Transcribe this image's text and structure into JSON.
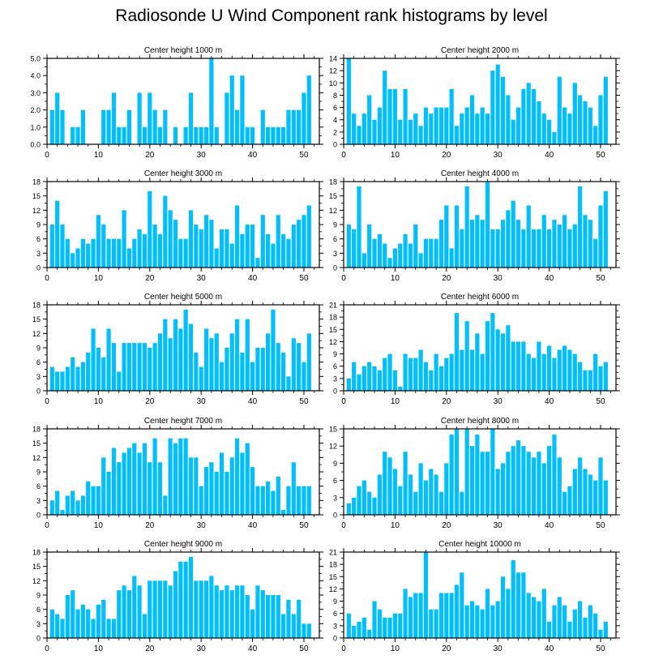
{
  "figure": {
    "title": "Radiosonde U Wind Component rank histograms by level"
  },
  "chart_data": [
    {
      "type": "bar",
      "title": "Center height 1000 m",
      "x": [
        1,
        2,
        3,
        4,
        5,
        6,
        7,
        8,
        9,
        10,
        11,
        12,
        13,
        14,
        15,
        16,
        17,
        18,
        19,
        20,
        21,
        22,
        23,
        24,
        25,
        26,
        27,
        28,
        29,
        30,
        31,
        32,
        33,
        34,
        35,
        36,
        37,
        38,
        39,
        40,
        41,
        42,
        43,
        44,
        45,
        46,
        47,
        48,
        49,
        50,
        51
      ],
      "values": [
        2,
        3,
        2,
        0,
        1,
        1,
        2,
        0,
        0,
        0,
        2,
        2,
        3,
        1,
        1,
        2,
        0,
        3,
        1,
        3,
        2,
        1,
        2,
        0,
        1,
        0,
        1,
        3,
        1,
        1,
        1,
        5,
        1,
        0,
        3,
        4,
        2,
        4,
        1,
        1,
        0,
        2,
        1,
        1,
        1,
        1,
        2,
        2,
        2,
        3,
        4
      ],
      "xlim": [
        0,
        53
      ],
      "ylim": [
        0,
        5
      ],
      "xticks": [
        0,
        10,
        20,
        30,
        40,
        50
      ],
      "yticks": [
        0,
        1,
        2,
        3,
        4,
        5
      ],
      "ytick_labels": [
        "0.0",
        "1.0",
        "2.0",
        "3.0",
        "4.0",
        "5.0"
      ]
    },
    {
      "type": "bar",
      "title": "Center height 2000 m",
      "x": [
        1,
        2,
        3,
        4,
        5,
        6,
        7,
        8,
        9,
        10,
        11,
        12,
        13,
        14,
        15,
        16,
        17,
        18,
        19,
        20,
        21,
        22,
        23,
        24,
        25,
        26,
        27,
        28,
        29,
        30,
        31,
        32,
        33,
        34,
        35,
        36,
        37,
        38,
        39,
        40,
        41,
        42,
        43,
        44,
        45,
        46,
        47,
        48,
        49,
        50,
        51
      ],
      "values": [
        14,
        5,
        3,
        5,
        8,
        4,
        6,
        12,
        9,
        9,
        4,
        9,
        4,
        5,
        3,
        6,
        5,
        6,
        6,
        6,
        9,
        3,
        5,
        6,
        8,
        5,
        6,
        5,
        12,
        13,
        11,
        8,
        4,
        6,
        9,
        10,
        9,
        7,
        5,
        4,
        2,
        11,
        6,
        5,
        10,
        8,
        7,
        6,
        3,
        8,
        11
      ],
      "xlim": [
        0,
        53
      ],
      "ylim": [
        0,
        14
      ],
      "xticks": [
        0,
        10,
        20,
        30,
        40,
        50
      ],
      "yticks": [
        0,
        2,
        4,
        6,
        8,
        10,
        12,
        14
      ],
      "ytick_labels": [
        "0",
        "2",
        "4",
        "6",
        "8",
        "10",
        "12",
        "14"
      ]
    },
    {
      "type": "bar",
      "title": "Center height 3000 m",
      "x": [
        1,
        2,
        3,
        4,
        5,
        6,
        7,
        8,
        9,
        10,
        11,
        12,
        13,
        14,
        15,
        16,
        17,
        18,
        19,
        20,
        21,
        22,
        23,
        24,
        25,
        26,
        27,
        28,
        29,
        30,
        31,
        32,
        33,
        34,
        35,
        36,
        37,
        38,
        39,
        40,
        41,
        42,
        43,
        44,
        45,
        46,
        47,
        48,
        49,
        50,
        51
      ],
      "values": [
        9,
        14,
        9,
        6,
        3,
        4,
        6,
        5,
        6,
        11,
        9,
        6,
        6,
        6,
        12,
        4,
        6,
        8,
        7,
        16,
        9,
        7,
        15,
        12,
        10,
        6,
        6,
        12,
        9,
        8,
        11,
        10,
        4,
        8,
        8,
        5,
        13,
        7,
        9,
        9,
        2,
        11,
        7,
        5,
        11,
        7,
        6,
        9,
        10,
        11,
        13
      ],
      "xlim": [
        0,
        53
      ],
      "ylim": [
        0,
        18
      ],
      "xticks": [
        0,
        10,
        20,
        30,
        40,
        50
      ],
      "yticks": [
        0,
        3,
        6,
        9,
        12,
        15,
        18
      ],
      "ytick_labels": [
        "0",
        "3",
        "6",
        "9",
        "12",
        "15",
        "18"
      ]
    },
    {
      "type": "bar",
      "title": "Center height 4000 m",
      "x": [
        1,
        2,
        3,
        4,
        5,
        6,
        7,
        8,
        9,
        10,
        11,
        12,
        13,
        14,
        15,
        16,
        17,
        18,
        19,
        20,
        21,
        22,
        23,
        24,
        25,
        26,
        27,
        28,
        29,
        30,
        31,
        32,
        33,
        34,
        35,
        36,
        37,
        38,
        39,
        40,
        41,
        42,
        43,
        44,
        45,
        46,
        47,
        48,
        49,
        50,
        51
      ],
      "values": [
        9,
        8,
        17,
        3,
        9,
        6,
        7,
        5,
        2,
        4,
        5,
        7,
        5,
        9,
        3,
        6,
        6,
        6,
        10,
        13,
        4,
        13,
        8,
        17,
        10,
        11,
        10,
        18,
        8,
        8,
        10,
        12,
        14,
        10,
        8,
        13,
        8,
        8,
        11,
        8,
        10,
        9,
        11,
        8,
        9,
        17,
        11,
        10,
        6,
        13,
        16
      ],
      "xlim": [
        0,
        53
      ],
      "ylim": [
        0,
        18
      ],
      "xticks": [
        0,
        10,
        20,
        30,
        40,
        50
      ],
      "yticks": [
        0,
        3,
        6,
        9,
        12,
        15,
        18
      ],
      "ytick_labels": [
        "0",
        "3",
        "6",
        "9",
        "12",
        "15",
        "18"
      ]
    },
    {
      "type": "bar",
      "title": "Center height 5000 m",
      "x": [
        1,
        2,
        3,
        4,
        5,
        6,
        7,
        8,
        9,
        10,
        11,
        12,
        13,
        14,
        15,
        16,
        17,
        18,
        19,
        20,
        21,
        22,
        23,
        24,
        25,
        26,
        27,
        28,
        29,
        30,
        31,
        32,
        33,
        34,
        35,
        36,
        37,
        38,
        39,
        40,
        41,
        42,
        43,
        44,
        45,
        46,
        47,
        48,
        49,
        50,
        51
      ],
      "values": [
        5,
        4,
        4,
        5,
        7,
        5,
        6,
        8,
        13,
        9,
        7,
        13,
        10,
        4,
        10,
        10,
        10,
        10,
        10,
        9,
        10,
        12,
        15,
        11,
        15,
        13,
        17,
        14,
        8,
        5,
        13,
        11,
        12,
        6,
        9,
        12,
        15,
        8,
        15,
        6,
        9,
        9,
        12,
        17,
        10,
        8,
        3,
        11,
        10,
        6,
        12
      ],
      "xlim": [
        0,
        53
      ],
      "ylim": [
        0,
        18
      ],
      "xticks": [
        0,
        10,
        20,
        30,
        40,
        50
      ],
      "yticks": [
        0,
        3,
        6,
        9,
        12,
        15,
        18
      ],
      "ytick_labels": [
        "0",
        "3",
        "6",
        "9",
        "12",
        "15",
        "18"
      ]
    },
    {
      "type": "bar",
      "title": "Center height 6000 m",
      "x": [
        1,
        2,
        3,
        4,
        5,
        6,
        7,
        8,
        9,
        10,
        11,
        12,
        13,
        14,
        15,
        16,
        17,
        18,
        19,
        20,
        21,
        22,
        23,
        24,
        25,
        26,
        27,
        28,
        29,
        30,
        31,
        32,
        33,
        34,
        35,
        36,
        37,
        38,
        39,
        40,
        41,
        42,
        43,
        44,
        45,
        46,
        47,
        48,
        49,
        50,
        51
      ],
      "values": [
        3,
        7,
        4,
        6,
        7,
        6,
        5,
        8,
        9,
        5,
        1,
        9,
        8,
        8,
        10,
        7,
        5,
        9,
        6,
        8,
        9,
        19,
        10,
        17,
        10,
        14,
        9,
        17,
        19,
        15,
        14,
        16,
        12,
        12,
        12,
        9,
        8,
        12,
        9,
        11,
        8,
        10,
        11,
        10,
        9,
        7,
        5,
        5,
        9,
        6,
        7
      ],
      "xlim": [
        0,
        53
      ],
      "ylim": [
        0,
        21
      ],
      "xticks": [
        0,
        10,
        20,
        30,
        40,
        50
      ],
      "yticks": [
        0,
        3,
        6,
        9,
        12,
        15,
        18,
        21
      ],
      "ytick_labels": [
        "0",
        "3",
        "6",
        "9",
        "12",
        "15",
        "18",
        "21"
      ]
    },
    {
      "type": "bar",
      "title": "Center height 7000 m",
      "x": [
        1,
        2,
        3,
        4,
        5,
        6,
        7,
        8,
        9,
        10,
        11,
        12,
        13,
        14,
        15,
        16,
        17,
        18,
        19,
        20,
        21,
        22,
        23,
        24,
        25,
        26,
        27,
        28,
        29,
        30,
        31,
        32,
        33,
        34,
        35,
        36,
        37,
        38,
        39,
        40,
        41,
        42,
        43,
        44,
        45,
        46,
        47,
        48,
        49,
        50,
        51
      ],
      "values": [
        3,
        5,
        1,
        4,
        5,
        3,
        4,
        7,
        6,
        6,
        12,
        9,
        14,
        11,
        13,
        14,
        15,
        13,
        15,
        11,
        16,
        11,
        4,
        16,
        15,
        16,
        16,
        12,
        12,
        6,
        10,
        11,
        9,
        13,
        9,
        12,
        16,
        13,
        15,
        10,
        6,
        6,
        7,
        5,
        8,
        1,
        6,
        11,
        6,
        6,
        6
      ],
      "xlim": [
        0,
        53
      ],
      "ylim": [
        0,
        18
      ],
      "xticks": [
        0,
        10,
        20,
        30,
        40,
        50
      ],
      "yticks": [
        0,
        3,
        6,
        9,
        12,
        15,
        18
      ],
      "ytick_labels": [
        "0",
        "3",
        "6",
        "9",
        "12",
        "15",
        "18"
      ]
    },
    {
      "type": "bar",
      "title": "Center height 8000 m",
      "x": [
        1,
        2,
        3,
        4,
        5,
        6,
        7,
        8,
        9,
        10,
        11,
        12,
        13,
        14,
        15,
        16,
        17,
        18,
        19,
        20,
        21,
        22,
        23,
        24,
        25,
        26,
        27,
        28,
        29,
        30,
        31,
        32,
        33,
        34,
        35,
        36,
        37,
        38,
        39,
        40,
        41,
        42,
        43,
        44,
        45,
        46,
        47,
        48,
        49,
        50,
        51
      ],
      "values": [
        2,
        3,
        5,
        6,
        4,
        3,
        7,
        11,
        10,
        8,
        5,
        11,
        7,
        4,
        9,
        6,
        8,
        7,
        4,
        9,
        14,
        15,
        4,
        15,
        12,
        14,
        11,
        11,
        15,
        8,
        9,
        11,
        12,
        13,
        12,
        11,
        10,
        11,
        9,
        12,
        14,
        10,
        4,
        5,
        8,
        10,
        8,
        7,
        6,
        10,
        6
      ],
      "xlim": [
        0,
        53
      ],
      "ylim": [
        0,
        15
      ],
      "xticks": [
        0,
        10,
        20,
        30,
        40,
        50
      ],
      "yticks": [
        0,
        3,
        6,
        9,
        12,
        15
      ],
      "ytick_labels": [
        "0",
        "3",
        "6",
        "9",
        "12",
        "15"
      ]
    },
    {
      "type": "bar",
      "title": "Center height 9000 m",
      "x": [
        1,
        2,
        3,
        4,
        5,
        6,
        7,
        8,
        9,
        10,
        11,
        12,
        13,
        14,
        15,
        16,
        17,
        18,
        19,
        20,
        21,
        22,
        23,
        24,
        25,
        26,
        27,
        28,
        29,
        30,
        31,
        32,
        33,
        34,
        35,
        36,
        37,
        38,
        39,
        40,
        41,
        42,
        43,
        44,
        45,
        46,
        47,
        48,
        49,
        50,
        51
      ],
      "values": [
        6,
        5,
        4,
        9,
        10,
        6,
        7,
        6,
        4,
        7,
        8,
        4,
        4,
        10,
        11,
        10,
        13,
        11,
        5,
        12,
        12,
        12,
        12,
        11,
        14,
        16,
        16,
        17,
        12,
        12,
        12,
        13,
        11,
        10,
        11,
        10,
        11,
        11,
        9,
        6,
        11,
        10,
        9,
        9,
        9,
        5,
        8,
        5,
        8,
        3,
        3
      ],
      "xlim": [
        0,
        53
      ],
      "ylim": [
        0,
        18
      ],
      "xticks": [
        0,
        10,
        20,
        30,
        40,
        50
      ],
      "yticks": [
        0,
        3,
        6,
        9,
        12,
        15,
        18
      ],
      "ytick_labels": [
        "0",
        "3",
        "6",
        "9",
        "12",
        "15",
        "18"
      ]
    },
    {
      "type": "bar",
      "title": "Center height 10000 m",
      "x": [
        1,
        2,
        3,
        4,
        5,
        6,
        7,
        8,
        9,
        10,
        11,
        12,
        13,
        14,
        15,
        16,
        17,
        18,
        19,
        20,
        21,
        22,
        23,
        24,
        25,
        26,
        27,
        28,
        29,
        30,
        31,
        32,
        33,
        34,
        35,
        36,
        37,
        38,
        39,
        40,
        41,
        42,
        43,
        44,
        45,
        46,
        47,
        48,
        49,
        50,
        51
      ],
      "values": [
        6,
        3,
        4,
        5,
        2,
        9,
        7,
        5,
        5,
        6,
        6,
        12,
        10,
        11,
        11,
        21,
        7,
        7,
        11,
        11,
        11,
        13,
        16,
        8,
        9,
        8,
        7,
        12,
        8,
        9,
        15,
        12,
        19,
        16,
        16,
        11,
        10,
        9,
        12,
        4,
        8,
        10,
        8,
        4,
        7,
        9,
        5,
        8,
        6,
        2,
        4
      ],
      "xlim": [
        0,
        53
      ],
      "ylim": [
        0,
        21
      ],
      "xticks": [
        0,
        10,
        20,
        30,
        40,
        50
      ],
      "yticks": [
        0,
        3,
        6,
        9,
        12,
        15,
        18,
        21
      ],
      "ytick_labels": [
        "0",
        "3",
        "6",
        "9",
        "12",
        "15",
        "18",
        "21"
      ]
    }
  ],
  "style": {
    "bar_color": "#00bfff",
    "axis_color": "#000000"
  }
}
